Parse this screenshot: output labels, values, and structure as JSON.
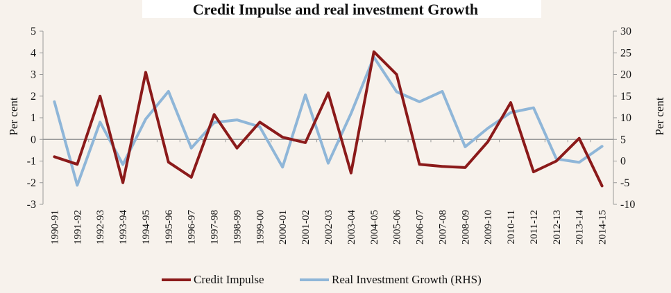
{
  "chart_data": {
    "type": "line",
    "title": "Credit Impulse and real investment Growth",
    "ylabel_left": "Per cent",
    "ylabel_right": "Per cent",
    "categories": [
      "1990-91",
      "1991-92",
      "1992-93",
      "1993-94",
      "1994-95",
      "1995-96",
      "1996-97",
      "1997-98",
      "1998-99",
      "1999-00",
      "2000-01",
      "2001-02",
      "2002-03",
      "2003-04",
      "2004-05",
      "2005-06",
      "2006-07",
      "2007-08",
      "2008-09",
      "2009-10",
      "2010-11",
      "2011-12",
      "2012-13",
      "2013-14",
      "2014-15"
    ],
    "left_axis": {
      "min": -3,
      "max": 5,
      "ticks": [
        5,
        4,
        3,
        2,
        1,
        0,
        -1,
        -2,
        -3
      ]
    },
    "right_axis": {
      "min": -10,
      "max": 30,
      "ticks": [
        30,
        25,
        20,
        15,
        10,
        5,
        0,
        -5,
        -10
      ]
    },
    "series": [
      {
        "name": "Credit Impulse",
        "axis": "left",
        "color": "#8b1a1a",
        "values": [
          -0.8,
          -1.15,
          2.0,
          -2.0,
          3.1,
          -1.05,
          -1.75,
          1.15,
          -0.4,
          0.8,
          0.1,
          -0.15,
          2.15,
          -1.55,
          4.05,
          3.0,
          -1.15,
          -1.25,
          -1.3,
          -0.1,
          1.7,
          -1.5,
          -1.0,
          0.05,
          -2.15
        ]
      },
      {
        "name": "Real Investment Growth (RHS)",
        "axis": "right",
        "color": "#8fb6d8",
        "values": [
          13.7,
          -5.6,
          9.0,
          -0.8,
          9.7,
          16.1,
          3.0,
          8.9,
          9.5,
          7.9,
          -1.4,
          15.3,
          -0.5,
          11.0,
          24.0,
          16.0,
          13.7,
          16.1,
          3.3,
          7.6,
          11.2,
          12.3,
          0.5,
          -0.3,
          3.4
        ]
      }
    ],
    "legend_position": "bottom",
    "grid": false
  }
}
